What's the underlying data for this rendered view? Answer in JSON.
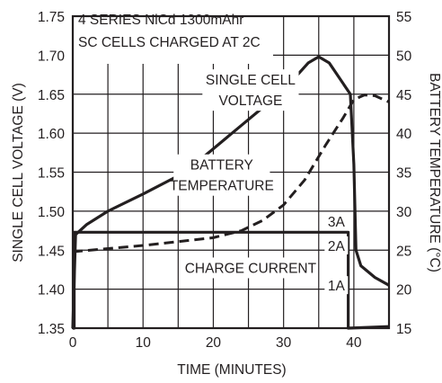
{
  "chart_data": {
    "type": "line",
    "annotation_lines": [
      "4 SERIES NiCd 1300mAhr",
      "SC CELLS CHARGED AT 2C"
    ],
    "xlabel": "TIME (MINUTES)",
    "ylabel_left": "SINGLE CELL VOLTAGE (V)",
    "ylabel_right": "BATTERY TEMPERATURE (°C)",
    "xlim": [
      0,
      45
    ],
    "ylim_left": [
      1.35,
      1.75
    ],
    "ylim_right": [
      15,
      55
    ],
    "x_ticks": [
      0,
      10,
      20,
      30,
      40
    ],
    "y_ticks_left": [
      "1.35",
      "1.40",
      "1.45",
      "1.50",
      "1.55",
      "1.60",
      "1.65",
      "1.70",
      "1.75"
    ],
    "y_ticks_right": [
      "15",
      "20",
      "25",
      "30",
      "35",
      "40",
      "45",
      "50",
      "55"
    ],
    "grid": true,
    "series": [
      {
        "name": "SINGLE CELL VOLTAGE",
        "axis": "left",
        "style": "solid",
        "points": [
          [
            0,
            1.35
          ],
          [
            0.4,
            1.47
          ],
          [
            2,
            1.483
          ],
          [
            5,
            1.5
          ],
          [
            10,
            1.522
          ],
          [
            16,
            1.55
          ],
          [
            20,
            1.58
          ],
          [
            24,
            1.61
          ],
          [
            28,
            1.64
          ],
          [
            30,
            1.656
          ],
          [
            32,
            1.675
          ],
          [
            33.5,
            1.69
          ],
          [
            35,
            1.698
          ],
          [
            36.5,
            1.69
          ],
          [
            38,
            1.67
          ],
          [
            39.5,
            1.65
          ],
          [
            40,
            1.56
          ],
          [
            40.3,
            1.45
          ],
          [
            41,
            1.43
          ],
          [
            43,
            1.415
          ],
          [
            45,
            1.405
          ]
        ]
      },
      {
        "name": "BATTERY TEMPERATURE",
        "axis": "right",
        "style": "dashed",
        "points": [
          [
            0,
            24.8
          ],
          [
            5,
            25.2
          ],
          [
            10,
            25.6
          ],
          [
            15,
            26.1
          ],
          [
            20,
            26.6
          ],
          [
            24,
            27.5
          ],
          [
            27,
            28.8
          ],
          [
            30,
            30.8
          ],
          [
            33,
            34
          ],
          [
            36,
            38.5
          ],
          [
            38.5,
            42
          ],
          [
            40,
            44.3
          ],
          [
            41.5,
            44.9
          ],
          [
            43,
            44.8
          ],
          [
            45,
            44
          ]
        ]
      },
      {
        "name": "CHARGE CURRENT",
        "axis": "left",
        "style": "solid",
        "points": [
          [
            0,
            1.35
          ],
          [
            0.2,
            1.35
          ],
          [
            0.2,
            1.473
          ],
          [
            39.2,
            1.473
          ],
          [
            39.2,
            1.35
          ],
          [
            45,
            1.352
          ]
        ]
      }
    ],
    "series_labels": [
      {
        "lines": [
          "SINGLE CELL",
          "VOLTAGE"
        ],
        "x": 25.3,
        "y": 1.653,
        "axis": "left"
      },
      {
        "lines": [
          "BATTERY",
          "TEMPERATURE"
        ],
        "x": 21.2,
        "y": 1.544,
        "axis": "left"
      },
      {
        "lines": [
          "CHARGE CURRENT"
        ],
        "x": 25.3,
        "y": 1.425,
        "axis": "left"
      }
    ],
    "current_labels": [
      {
        "text": "3A",
        "x": 37.5,
        "y": 1.486
      },
      {
        "text": "2A",
        "x": 37.5,
        "y": 1.455
      },
      {
        "text": "1A",
        "x": 37.5,
        "y": 1.404
      }
    ]
  }
}
